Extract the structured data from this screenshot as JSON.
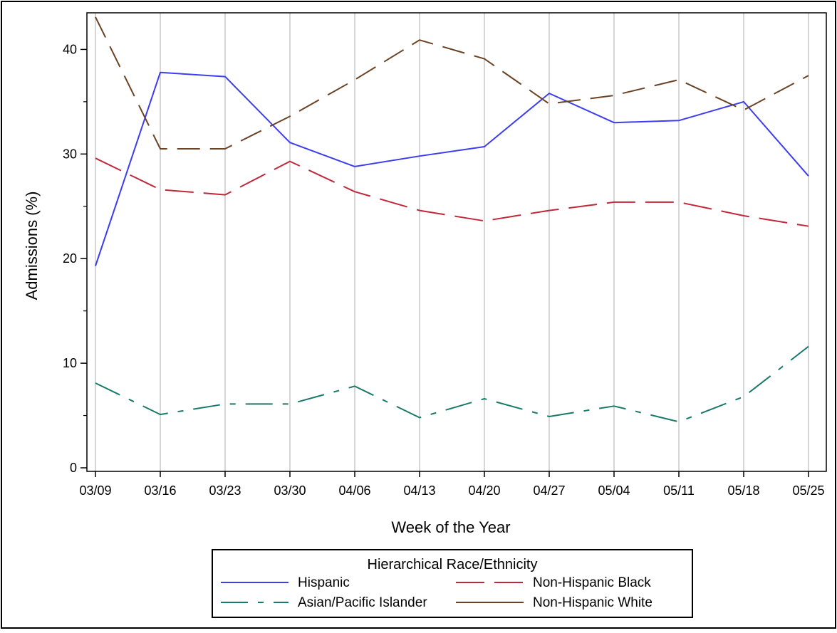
{
  "chart_data": {
    "type": "line",
    "xlabel": "Week of the Year",
    "ylabel": "Admissions (%)",
    "categories": [
      "03/09",
      "03/16",
      "03/23",
      "03/30",
      "04/06",
      "04/13",
      "04/20",
      "04/27",
      "05/04",
      "05/11",
      "05/18",
      "05/25"
    ],
    "ylim": [
      0,
      43.5
    ],
    "yticks": [
      0,
      10,
      20,
      30,
      40
    ],
    "grid": "vertical",
    "legend": {
      "title": "Hierarchical Race/Ethnicity",
      "placement": "bottom"
    },
    "series": [
      {
        "name": "Hispanic",
        "color": "#3d3df0",
        "dash": "solid",
        "values": [
          19.3,
          37.8,
          37.4,
          31.1,
          28.8,
          29.8,
          30.7,
          35.8,
          33.0,
          33.2,
          35.0,
          27.9
        ]
      },
      {
        "name": "Non-Hispanic Black",
        "color": "#c0283a",
        "dash": "long",
        "values": [
          29.6,
          26.6,
          26.1,
          29.3,
          26.4,
          24.6,
          23.6,
          24.6,
          25.4,
          25.4,
          24.1,
          23.1
        ]
      },
      {
        "name": "Asian/Pacific Islander",
        "color": "#1a7a6a",
        "dash": "longshort",
        "values": [
          8.1,
          5.1,
          6.1,
          6.1,
          7.8,
          4.8,
          6.6,
          4.9,
          5.9,
          4.4,
          6.8,
          11.6
        ]
      },
      {
        "name": "Non-Hispanic White",
        "color": "#6b4324",
        "dash": "medium",
        "values": [
          43.1,
          30.5,
          30.5,
          33.6,
          37.1,
          40.9,
          39.1,
          34.8,
          35.6,
          37.1,
          34.2,
          37.5
        ]
      }
    ]
  }
}
